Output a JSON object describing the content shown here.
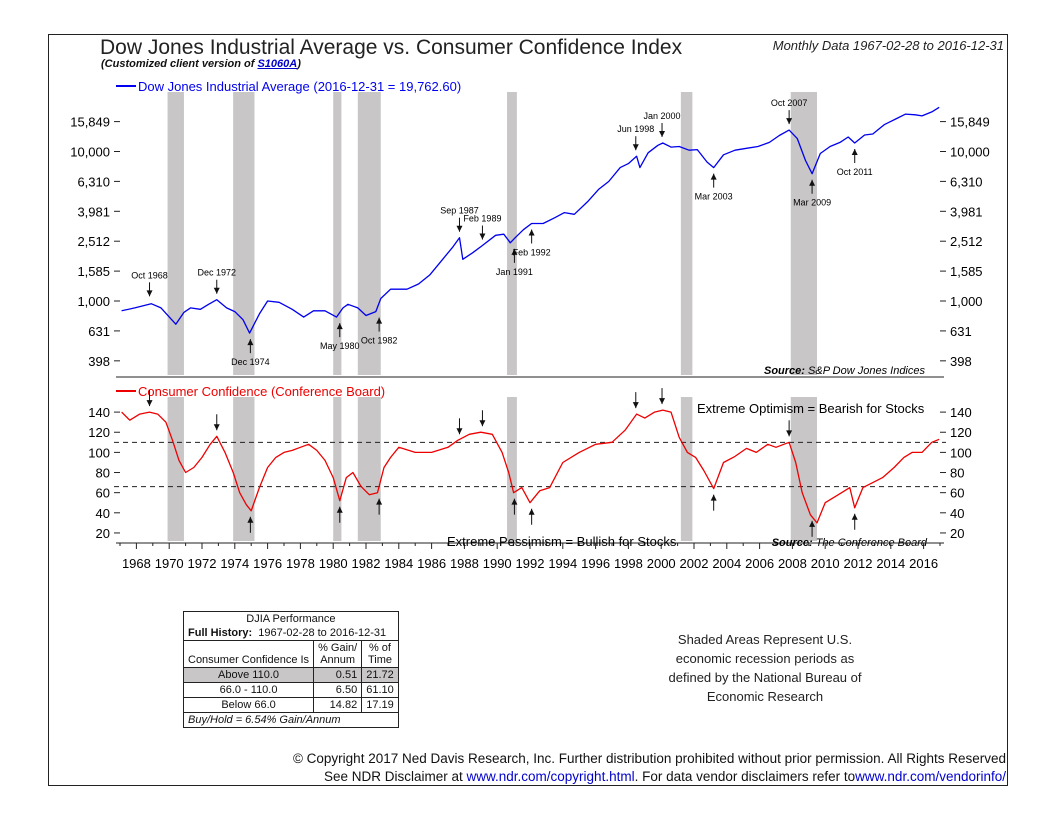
{
  "header": {
    "title": "Dow Jones Industrial Average vs. Consumer Confidence Index",
    "subtitle_prefix": "(Customized client version of ",
    "subtitle_code": "S1060A",
    "subtitle_suffix": ")",
    "period": "Monthly Data 1967-02-28 to 2016-12-31"
  },
  "chart_data": [
    {
      "type": "line",
      "title": "Dow Jones Industrial Average (2016-12-31 = 19,762.60)",
      "scale": "log",
      "color": "#0000ee",
      "y_ticks": [
        "15,849",
        "10,000",
        "6,310",
        "3,981",
        "2,512",
        "1,585",
        "1,000",
        "631",
        "398"
      ],
      "y_tick_values": [
        15849,
        10000,
        6310,
        3981,
        2512,
        1585,
        1000,
        631,
        398
      ],
      "ylim": [
        320,
        25000
      ],
      "source_label": "Source:",
      "source": "S&P Dow Jones Indices",
      "x": [
        1967.1,
        1967.9,
        1968.9,
        1969.5,
        1970.4,
        1970.9,
        1971.3,
        1971.9,
        1972.4,
        1972.9,
        1973.5,
        1974.0,
        1974.5,
        1974.9,
        1975.5,
        1976.0,
        1976.7,
        1977.5,
        1978.2,
        1978.8,
        1979.5,
        1980.2,
        1980.6,
        1980.9,
        1981.5,
        1982.0,
        1982.6,
        1982.9,
        1983.5,
        1984.5,
        1985.2,
        1985.9,
        1986.5,
        1987.3,
        1987.7,
        1987.9,
        1988.5,
        1989.1,
        1989.9,
        1990.4,
        1990.8,
        1991.1,
        1991.6,
        1992.1,
        1992.8,
        1993.5,
        1994.1,
        1994.7,
        1995.5,
        1996.2,
        1996.8,
        1997.5,
        1998.0,
        1998.5,
        1998.7,
        1999.2,
        1999.8,
        2000.1,
        2000.6,
        2001.1,
        2001.7,
        2002.2,
        2002.8,
        2003.2,
        2003.8,
        2004.5,
        2005.2,
        2005.9,
        2006.6,
        2007.2,
        2007.8,
        2008.3,
        2008.8,
        2009.2,
        2009.7,
        2010.3,
        2010.9,
        2011.4,
        2011.8,
        2012.4,
        2012.9,
        2013.6,
        2014.3,
        2014.9,
        2015.5,
        2015.9,
        2016.5,
        2016.95
      ],
      "values": [
        860,
        900,
        960,
        900,
        700,
        840,
        900,
        880,
        950,
        1020,
        900,
        850,
        750,
        610,
        820,
        1000,
        980,
        880,
        780,
        860,
        860,
        780,
        900,
        950,
        900,
        800,
        850,
        1040,
        1200,
        1200,
        1300,
        1500,
        1800,
        2300,
        2650,
        1900,
        2100,
        2350,
        2750,
        2800,
        2450,
        2650,
        3000,
        3300,
        3300,
        3600,
        3900,
        3800,
        4600,
        5600,
        6300,
        7800,
        8300,
        9300,
        7800,
        9800,
        11000,
        11400,
        10700,
        10800,
        10200,
        10300,
        8500,
        7800,
        9500,
        10200,
        10500,
        10800,
        11500,
        12800,
        13900,
        12200,
        8700,
        7100,
        9700,
        10800,
        11500,
        12500,
        11400,
        12900,
        13100,
        15100,
        16500,
        17800,
        17600,
        17300,
        18400,
        19762.6
      ],
      "annotations": [
        {
          "label": "Oct 1968",
          "x": 1968.8,
          "value": 980,
          "pos": "above"
        },
        {
          "label": "Dec 1972",
          "x": 1972.9,
          "value": 1020,
          "pos": "above"
        },
        {
          "label": "Dec 1974",
          "x": 1974.95,
          "value": 610,
          "pos": "below"
        },
        {
          "label": "May 1980",
          "x": 1980.4,
          "value": 780,
          "pos": "below"
        },
        {
          "label": "Oct 1982",
          "x": 1982.8,
          "value": 850,
          "pos": "below"
        },
        {
          "label": "Sep 1987",
          "x": 1987.7,
          "value": 2650,
          "pos": "above"
        },
        {
          "label": "Feb 1989",
          "x": 1989.1,
          "value": 2350,
          "pos": "above"
        },
        {
          "label": "Jan 1991",
          "x": 1991.05,
          "value": 2450,
          "pos": "below"
        },
        {
          "label": "Feb 1992",
          "x": 1992.1,
          "value": 3300,
          "pos": "below"
        },
        {
          "label": "Jun 1998",
          "x": 1998.45,
          "value": 9300,
          "pos": "above"
        },
        {
          "label": "Jan 2000",
          "x": 2000.05,
          "value": 11400,
          "pos": "above"
        },
        {
          "label": "Mar 2003",
          "x": 2003.2,
          "value": 7800,
          "pos": "below"
        },
        {
          "label": "Oct 2007",
          "x": 2007.8,
          "value": 13900,
          "pos": "above"
        },
        {
          "label": "Mar 2009",
          "x": 2009.2,
          "value": 7100,
          "pos": "below"
        },
        {
          "label": "Oct 2011",
          "x": 2011.8,
          "value": 11400,
          "pos": "below"
        }
      ]
    },
    {
      "type": "line",
      "title": "Consumer Confidence (Conference Board)",
      "color": "#ee0000",
      "y_ticks": [
        140,
        120,
        100,
        80,
        60,
        40,
        20
      ],
      "ylim": [
        12,
        155
      ],
      "reference_lines": [
        110,
        66
      ],
      "top_note": "Extreme Optimism = Bearish for Stocks",
      "bottom_note": "Extreme Pessimism = Bullish for Stocks",
      "source_label": "Source:",
      "source": "The Conference Board",
      "x": [
        1967.1,
        1967.6,
        1968.2,
        1968.8,
        1969.3,
        1969.8,
        1970.2,
        1970.6,
        1971.0,
        1971.5,
        1972.0,
        1972.5,
        1972.9,
        1973.4,
        1973.9,
        1974.3,
        1974.7,
        1975.0,
        1975.5,
        1976.0,
        1976.5,
        1977.0,
        1977.5,
        1978.0,
        1978.5,
        1979.0,
        1979.5,
        1980.0,
        1980.4,
        1980.8,
        1981.2,
        1981.7,
        1982.2,
        1982.7,
        1983.1,
        1983.5,
        1984.0,
        1985.0,
        1986.0,
        1987.0,
        1987.6,
        1988.3,
        1989.0,
        1989.7,
        1990.3,
        1990.7,
        1991.0,
        1991.5,
        1992.0,
        1992.6,
        1993.2,
        1994.0,
        1995.0,
        1996.0,
        1997.0,
        1997.8,
        1998.5,
        1999.0,
        1999.6,
        2000.1,
        2000.6,
        2001.1,
        2001.6,
        2002.1,
        2002.6,
        2003.2,
        2003.8,
        2004.5,
        2005.2,
        2005.8,
        2006.5,
        2007.0,
        2007.8,
        2008.2,
        2008.6,
        2009.1,
        2009.5,
        2010.0,
        2010.5,
        2011.0,
        2011.5,
        2011.8,
        2012.3,
        2012.9,
        2013.5,
        2014.2,
        2014.8,
        2015.3,
        2015.9,
        2016.5,
        2016.95
      ],
      "values": [
        140,
        132,
        138,
        140,
        138,
        130,
        112,
        92,
        80,
        85,
        95,
        108,
        116,
        100,
        80,
        60,
        48,
        42,
        65,
        85,
        95,
        100,
        102,
        105,
        108,
        102,
        92,
        75,
        52,
        75,
        80,
        66,
        58,
        60,
        85,
        95,
        105,
        100,
        100,
        105,
        112,
        118,
        120,
        118,
        100,
        80,
        60,
        65,
        50,
        62,
        65,
        90,
        100,
        108,
        110,
        122,
        138,
        134,
        140,
        142,
        140,
        115,
        100,
        95,
        82,
        64,
        90,
        96,
        104,
        100,
        108,
        105,
        110,
        90,
        60,
        38,
        30,
        50,
        55,
        60,
        65,
        45,
        65,
        70,
        75,
        85,
        95,
        100,
        100,
        110,
        113
      ]
    }
  ],
  "x_axis_labels": [
    "1968",
    "1970",
    "1972",
    "1974",
    "1976",
    "1978",
    "1980",
    "1982",
    "1984",
    "1986",
    "1988",
    "1990",
    "1992",
    "1994",
    "1996",
    "1998",
    "2000",
    "2002",
    "2004",
    "2006",
    "2008",
    "2010",
    "2012",
    "2014",
    "2016"
  ],
  "recessions": [
    [
      1969.9,
      1970.9
    ],
    [
      1973.9,
      1975.2
    ],
    [
      1980.0,
      1980.5
    ],
    [
      1981.5,
      1982.9
    ],
    [
      1990.6,
      1991.2
    ],
    [
      2001.2,
      2001.9
    ],
    [
      2007.9,
      2009.5
    ]
  ],
  "table": {
    "title": "DJIA Performance",
    "full_history_label": "Full History:",
    "full_history_value": "1967-02-28 to 2016-12-31",
    "col1_header": "Consumer Confidence Is",
    "col2_header_a": "% Gain/",
    "col2_header_b": "Annum",
    "col3_header_a": "% of",
    "col3_header_b": "Time",
    "rows": [
      {
        "label": "Above 110.0",
        "gain": "0.51",
        "time": "21.72"
      },
      {
        "label": "66.0 - 110.0",
        "gain": "6.50",
        "time": "61.10"
      },
      {
        "label": "Below 66.0",
        "gain": "14.82",
        "time": "17.19"
      }
    ],
    "footer": "Buy/Hold = 6.54% Gain/Annum"
  },
  "recession_note": "Shaded Areas Represent U.S. economic recession periods as defined by the National Bureau of Economic Research",
  "footer": {
    "copyright": "© Copyright 2017 Ned Davis Research, Inc. Further distribution prohibited without prior permission. All Rights Reserved",
    "disclaimer_a": "See NDR Disclaimer at ",
    "disclaimer_link1": "www.ndr.com/copyright.html",
    "disclaimer_b": ". For data vendor disclaimers refer to",
    "disclaimer_link2": "www.ndr.com/vendorinfo/"
  }
}
